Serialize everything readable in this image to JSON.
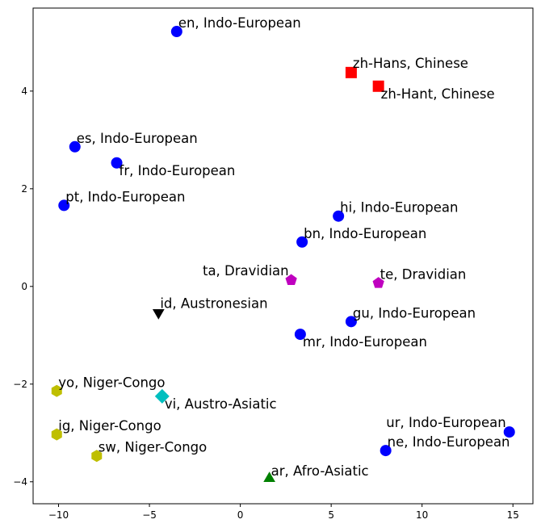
{
  "chart_data": {
    "type": "scatter",
    "title": "",
    "xlabel": "",
    "ylabel": "",
    "xlim": [
      -11.4,
      16.1
    ],
    "ylim": [
      -4.45,
      5.7
    ],
    "grid": false,
    "xticks": [
      -10,
      -5,
      0,
      5,
      10,
      15
    ],
    "yticks": [
      -4,
      -2,
      0,
      2,
      4
    ],
    "xtick_labels": [
      "−10",
      "−5",
      "0",
      "5",
      "10",
      "15"
    ],
    "ytick_labels": [
      "−4",
      "−2",
      "0",
      "2",
      "4"
    ],
    "families": {
      "Indo-European": {
        "marker": "circle",
        "color": "#0000ff"
      },
      "Chinese": {
        "marker": "square",
        "color": "#ff0000"
      },
      "Dravidian": {
        "marker": "pentagon",
        "color": "#bf00bf"
      },
      "Austronesian": {
        "marker": "triangle-down",
        "color": "#000000"
      },
      "Niger-Congo": {
        "marker": "hexagon",
        "color": "#bfbf00"
      },
      "Austro-Asiatic": {
        "marker": "diamond",
        "color": "#00bfbf"
      },
      "Afro-Asiatic": {
        "marker": "triangle-up",
        "color": "#008000"
      }
    },
    "points": [
      {
        "label": "en, Indo-European",
        "family": "Indo-European",
        "x": -3.5,
        "y": 5.22,
        "anchor": "right"
      },
      {
        "label": "zh-Hans, Chinese",
        "family": "Chinese",
        "x": 6.1,
        "y": 4.38,
        "anchor": "above-right"
      },
      {
        "label": "zh-Hant, Chinese",
        "family": "Chinese",
        "x": 7.6,
        "y": 4.1,
        "anchor": "below-right"
      },
      {
        "label": "es, Indo-European",
        "family": "Indo-European",
        "x": -9.1,
        "y": 2.86,
        "anchor": "right"
      },
      {
        "label": "fr, Indo-European",
        "family": "Indo-European",
        "x": -6.8,
        "y": 2.53,
        "anchor": "below-right"
      },
      {
        "label": "pt, Indo-European",
        "family": "Indo-European",
        "x": -9.7,
        "y": 1.66,
        "anchor": "right"
      },
      {
        "label": "hi, Indo-European",
        "family": "Indo-European",
        "x": 5.4,
        "y": 1.44,
        "anchor": "right"
      },
      {
        "label": "bn, Indo-European",
        "family": "Indo-European",
        "x": 3.4,
        "y": 0.91,
        "anchor": "right"
      },
      {
        "label": "ta, Dravidian",
        "family": "Dravidian",
        "x": 2.8,
        "y": 0.13,
        "anchor": "left"
      },
      {
        "label": "te, Dravidian",
        "family": "Dravidian",
        "x": 7.6,
        "y": 0.07,
        "anchor": "right"
      },
      {
        "label": "id, Austronesian",
        "family": "Austronesian",
        "x": -4.5,
        "y": -0.52,
        "anchor": "right"
      },
      {
        "label": "gu, Indo-European",
        "family": "Indo-European",
        "x": 6.1,
        "y": -0.72,
        "anchor": "right"
      },
      {
        "label": "mr, Indo-European",
        "family": "Indo-European",
        "x": 3.3,
        "y": -0.98,
        "anchor": "below-right"
      },
      {
        "label": "yo, Niger-Congo",
        "family": "Niger-Congo",
        "x": -10.1,
        "y": -2.14,
        "anchor": "right"
      },
      {
        "label": "vi, Austro-Asiatic",
        "family": "Austro-Asiatic",
        "x": -4.3,
        "y": -2.25,
        "anchor": "below-right"
      },
      {
        "label": "ig, Niger-Congo",
        "family": "Niger-Congo",
        "x": -10.1,
        "y": -3.03,
        "anchor": "right"
      },
      {
        "label": "ur, Indo-European",
        "family": "Indo-European",
        "x": 14.8,
        "y": -2.98,
        "anchor": "above-left"
      },
      {
        "label": "sw, Niger-Congo",
        "family": "Niger-Congo",
        "x": -7.9,
        "y": -3.47,
        "anchor": "right"
      },
      {
        "label": "ne, Indo-European",
        "family": "Indo-European",
        "x": 8.0,
        "y": -3.36,
        "anchor": "right"
      },
      {
        "label": "ar, Afro-Asiatic",
        "family": "Afro-Asiatic",
        "x": 1.6,
        "y": -3.95,
        "anchor": "right"
      }
    ]
  }
}
